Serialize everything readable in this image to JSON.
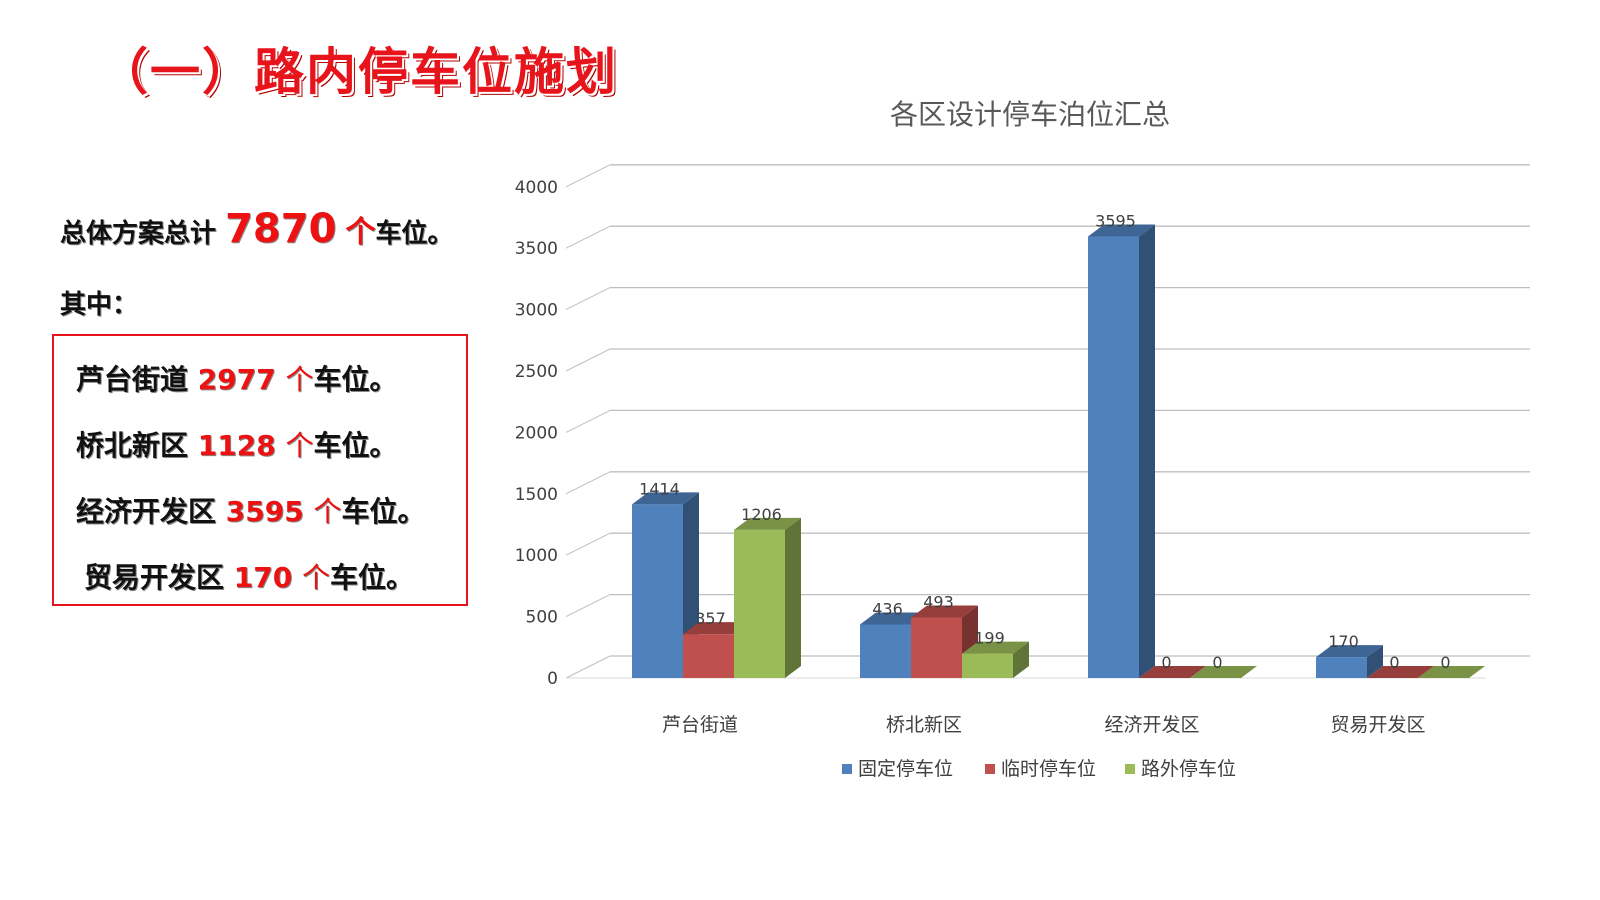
{
  "slide": {
    "title": "（一）路内停车位施划"
  },
  "summary": {
    "prefix": "总体方案总计",
    "total": "7870",
    "unit": "个",
    "suffix": "车位。",
    "among": "其中："
  },
  "districts": [
    {
      "name": "芦台街道",
      "count": "2977",
      "unit": "个",
      "suffix": "车位。"
    },
    {
      "name": "桥北新区",
      "count": "1128",
      "unit": "个",
      "suffix": "车位。"
    },
    {
      "name": "经济开发区",
      "count": "3595",
      "unit": "个",
      "suffix": "车位。"
    },
    {
      "name": "贸易开发区",
      "count": "170",
      "unit": "个",
      "suffix": "车位。"
    }
  ],
  "chart_data": {
    "type": "bar",
    "title": "各区设计停车泊位汇总",
    "categories": [
      "芦台街道",
      "桥北新区",
      "经济开发区",
      "贸易开发区"
    ],
    "series": [
      {
        "name": "固定停车位",
        "values": [
          1414,
          436,
          3595,
          170
        ],
        "color": "#4f81bd"
      },
      {
        "name": "临时停车位",
        "values": [
          357,
          493,
          0,
          0
        ],
        "color": "#c0504d"
      },
      {
        "name": "路外停车位",
        "values": [
          1206,
          199,
          0,
          0
        ],
        "color": "#9bbb59"
      }
    ],
    "ylim": [
      0,
      4000
    ],
    "yticks": [
      "0",
      "500",
      "1000",
      "1500",
      "2000",
      "2500",
      "3000",
      "3500",
      "4000"
    ],
    "grid": true,
    "legend_position": "bottom",
    "xlabel": "",
    "ylabel": ""
  }
}
